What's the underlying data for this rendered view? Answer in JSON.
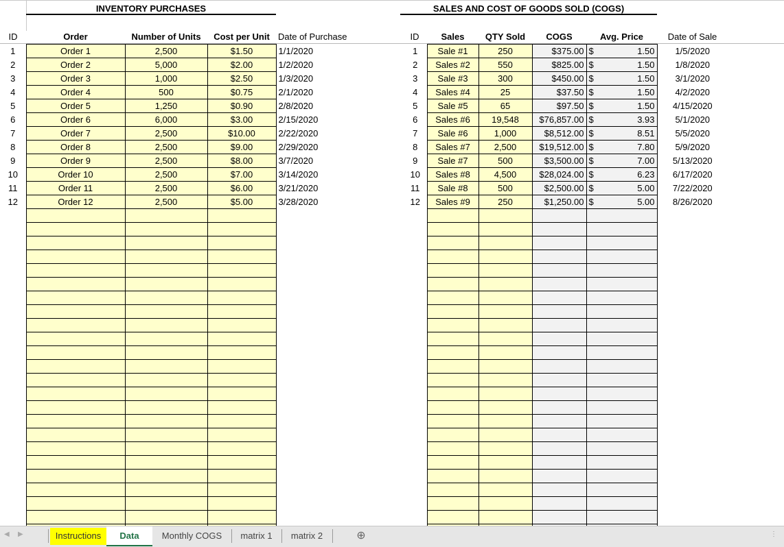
{
  "inventory": {
    "title": "INVENTORY PURCHASES",
    "headers": [
      "ID",
      "Order",
      "Number of Units",
      "Cost per Unit",
      "Date of Purchase"
    ],
    "rows": [
      [
        "1",
        "Order 1",
        "2,500",
        "$1.50",
        "1/1/2020"
      ],
      [
        "2",
        "Order 2",
        "5,000",
        "$2.00",
        "1/2/2020"
      ],
      [
        "3",
        "Order 3",
        "1,000",
        "$2.50",
        "1/3/2020"
      ],
      [
        "4",
        "Order 4",
        "500",
        "$0.75",
        "2/1/2020"
      ],
      [
        "5",
        "Order 5",
        "1,250",
        "$0.90",
        "2/8/2020"
      ],
      [
        "6",
        "Order 6",
        "6,000",
        "$3.00",
        "2/15/2020"
      ],
      [
        "7",
        "Order 7",
        "2,500",
        "$10.00",
        "2/22/2020"
      ],
      [
        "8",
        "Order 8",
        "2,500",
        "$9.00",
        "2/29/2020"
      ],
      [
        "9",
        "Order 9",
        "2,500",
        "$8.00",
        "3/7/2020"
      ],
      [
        "10",
        "Order 10",
        "2,500",
        "$7.00",
        "3/14/2020"
      ],
      [
        "11",
        "Order 11",
        "2,500",
        "$6.00",
        "3/21/2020"
      ],
      [
        "12",
        "Order 12",
        "2,500",
        "$5.00",
        "3/28/2020"
      ]
    ]
  },
  "sales": {
    "title": "SALES AND COST OF GOODS SOLD (COGS)",
    "headers": [
      "ID",
      "Sales",
      "QTY Sold",
      "COGS",
      "Avg. Price",
      "Date of Sale"
    ],
    "rows": [
      [
        "1",
        "Sale #1",
        "250",
        "$375.00",
        "$",
        "1.50",
        "1/5/2020"
      ],
      [
        "2",
        "Sales #2",
        "550",
        "$825.00",
        "$",
        "1.50",
        "1/8/2020"
      ],
      [
        "3",
        "Sale #3",
        "300",
        "$450.00",
        "$",
        "1.50",
        "3/1/2020"
      ],
      [
        "4",
        "Sales #4",
        "25",
        "$37.50",
        "$",
        "1.50",
        "4/2/2020"
      ],
      [
        "5",
        "Sale #5",
        "65",
        "$97.50",
        "$",
        "1.50",
        "4/15/2020"
      ],
      [
        "6",
        "Sales #6",
        "19,548",
        "$76,857.00",
        "$",
        "3.93",
        "5/1/2020"
      ],
      [
        "7",
        "Sale #6",
        "1,000",
        "$8,512.00",
        "$",
        "8.51",
        "5/5/2020"
      ],
      [
        "8",
        "Sales #7",
        "2,500",
        "$19,512.00",
        "$",
        "7.80",
        "5/9/2020"
      ],
      [
        "9",
        "Sale #7",
        "500",
        "$3,500.00",
        "$",
        "7.00",
        "5/13/2020"
      ],
      [
        "10",
        "Sales #8",
        "4,500",
        "$28,024.00",
        "$",
        "6.23",
        "6/17/2020"
      ],
      [
        "11",
        "Sale #8",
        "500",
        "$2,500.00",
        "$",
        "5.00",
        "7/22/2020"
      ],
      [
        "12",
        "Sales #9",
        "250",
        "$1,250.00",
        "$",
        "5.00",
        "8/26/2020"
      ]
    ]
  },
  "tabs": [
    "Instructions",
    "Data",
    "Monthly COGS",
    "matrix 1",
    "matrix 2"
  ],
  "active_tab": "Data",
  "colors": {
    "input_fill": "#ffffcc",
    "calc_fill": "#f2f2f2",
    "active_tab": "#217346",
    "highlight_tab": "#ffff00"
  }
}
